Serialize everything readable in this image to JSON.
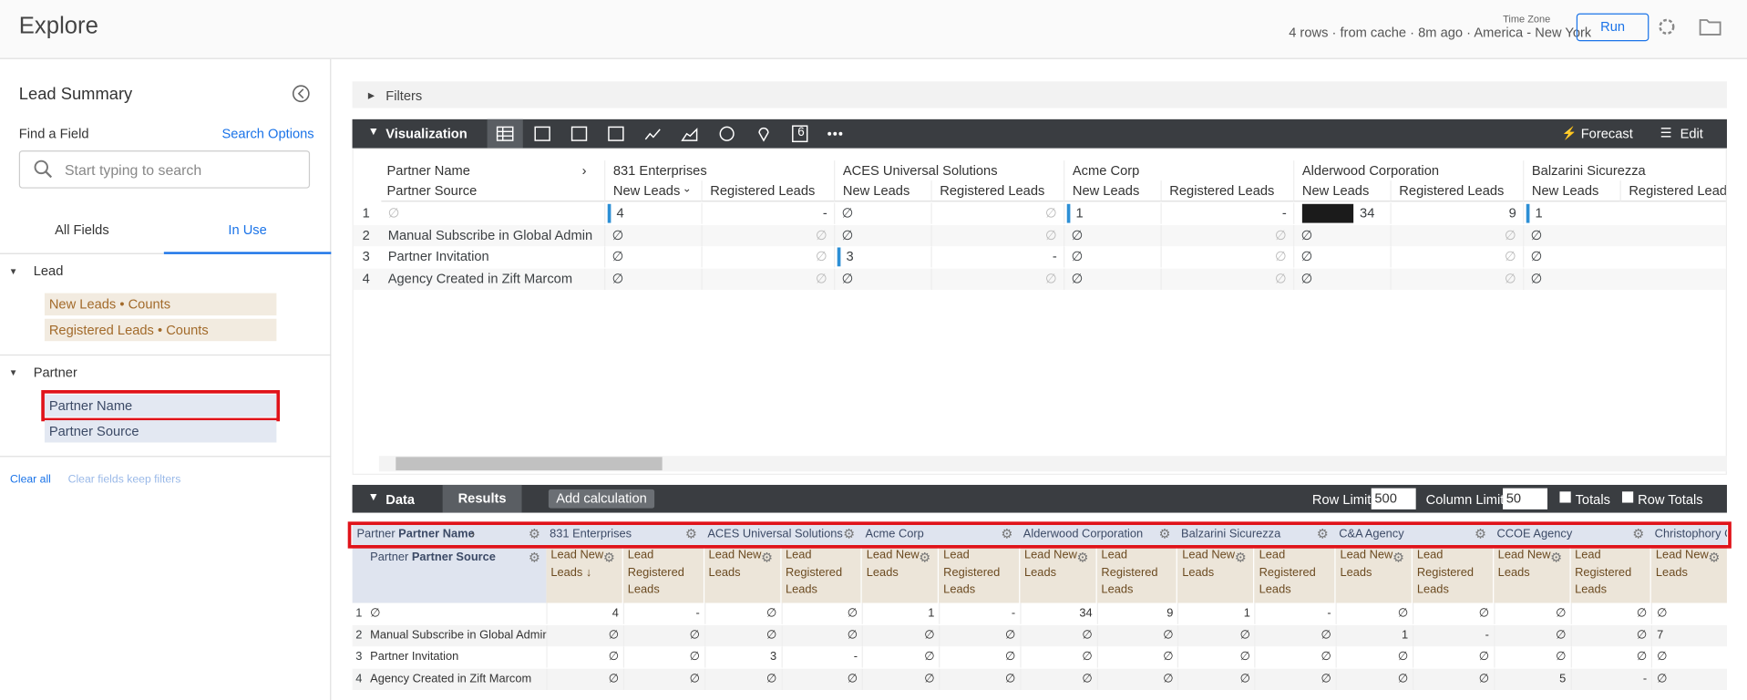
{
  "header": {
    "title": "Explore",
    "status": "4 rows · from cache · 8m ago · America - New York",
    "timezone": "Time Zone",
    "run": "Run"
  },
  "sidebar": {
    "title": "Lead Summary",
    "find": "Find a Field",
    "search_options": "Search Options",
    "placeholder": "Start typing to search",
    "tabs": [
      "All Fields",
      "In Use"
    ],
    "groups": [
      {
        "name": "Lead",
        "fields": [
          "New Leads • Counts",
          "Registered Leads • Counts"
        ]
      },
      {
        "name": "Partner",
        "fields": [
          "Partner Name",
          "Partner Source"
        ]
      }
    ],
    "footer": [
      "Clear all",
      "Clear fields keep filters"
    ]
  },
  "filters": "Filters",
  "viz": {
    "label": "Visualization",
    "icon_number": "6",
    "actions": [
      "Forecast",
      "Edit"
    ],
    "pivot_label": "Partner Name",
    "row_label": "Partner Source",
    "partners": [
      "831 Enterprises",
      "ACES Universal Solutions",
      "Acme Corp",
      "Alderwood Corporation",
      "Balzarini Sicurezza"
    ],
    "measures": [
      "New Leads",
      "Registered Leads"
    ],
    "rows": [
      {
        "num": "1",
        "source": "∅",
        "cells": [
          "4",
          "-",
          "∅",
          "∅",
          "1",
          "-",
          "34",
          "9",
          "1"
        ]
      },
      {
        "num": "2",
        "source": "Manual Subscribe in Global Admin",
        "cells": [
          "∅",
          "∅",
          "∅",
          "∅",
          "∅",
          "∅",
          "∅",
          "∅",
          "∅"
        ]
      },
      {
        "num": "3",
        "source": "Partner Invitation",
        "cells": [
          "∅",
          "∅",
          "3",
          "-",
          "∅",
          "∅",
          "∅",
          "∅",
          "∅"
        ]
      },
      {
        "num": "4",
        "source": "Agency Created in Zift Marcom",
        "cells": [
          "∅",
          "∅",
          "∅",
          "∅",
          "∅",
          "∅",
          "∅",
          "∅",
          "∅"
        ]
      }
    ]
  },
  "data_panel": {
    "label": "Data",
    "tab": "Results",
    "add": "Add calculation",
    "row_limit_label": "Row Limit",
    "row_limit": "500",
    "col_limit_label": "Column Limit",
    "col_limit": "50",
    "totals": "Totals",
    "row_totals": "Row Totals"
  },
  "results": {
    "view": "Partner",
    "pivot_label": "Partner Name",
    "row_label": "Partner Source",
    "measure_view": "Lead",
    "measures": [
      "New Leads",
      "Registered Leads"
    ],
    "sort": "↓",
    "partners": [
      "831 Enterprises",
      "ACES Universal Solutions",
      "Acme Corp",
      "Alderwood Corporation",
      "Balzarini Sicurezza",
      "C&A Agency",
      "CCOE Agency",
      "Christophory C"
    ],
    "rows": [
      {
        "num": "1",
        "source": "∅",
        "cells": [
          "4",
          "-",
          "∅",
          "∅",
          "1",
          "-",
          "34",
          "9",
          "1",
          "-",
          "∅",
          "∅",
          "∅",
          "∅",
          "∅"
        ]
      },
      {
        "num": "2",
        "source": "Manual Subscribe in Global Admin",
        "cells": [
          "∅",
          "∅",
          "∅",
          "∅",
          "∅",
          "∅",
          "∅",
          "∅",
          "∅",
          "∅",
          "1",
          "-",
          "∅",
          "∅",
          "7"
        ]
      },
      {
        "num": "3",
        "source": "Partner Invitation",
        "cells": [
          "∅",
          "∅",
          "3",
          "-",
          "∅",
          "∅",
          "∅",
          "∅",
          "∅",
          "∅",
          "∅",
          "∅",
          "∅",
          "∅",
          "∅"
        ]
      },
      {
        "num": "4",
        "source": "Agency Created in Zift Marcom",
        "cells": [
          "∅",
          "∅",
          "∅",
          "∅",
          "∅",
          "∅",
          "∅",
          "∅",
          "∅",
          "∅",
          "∅",
          "∅",
          "5",
          "-",
          "∅"
        ]
      }
    ]
  }
}
